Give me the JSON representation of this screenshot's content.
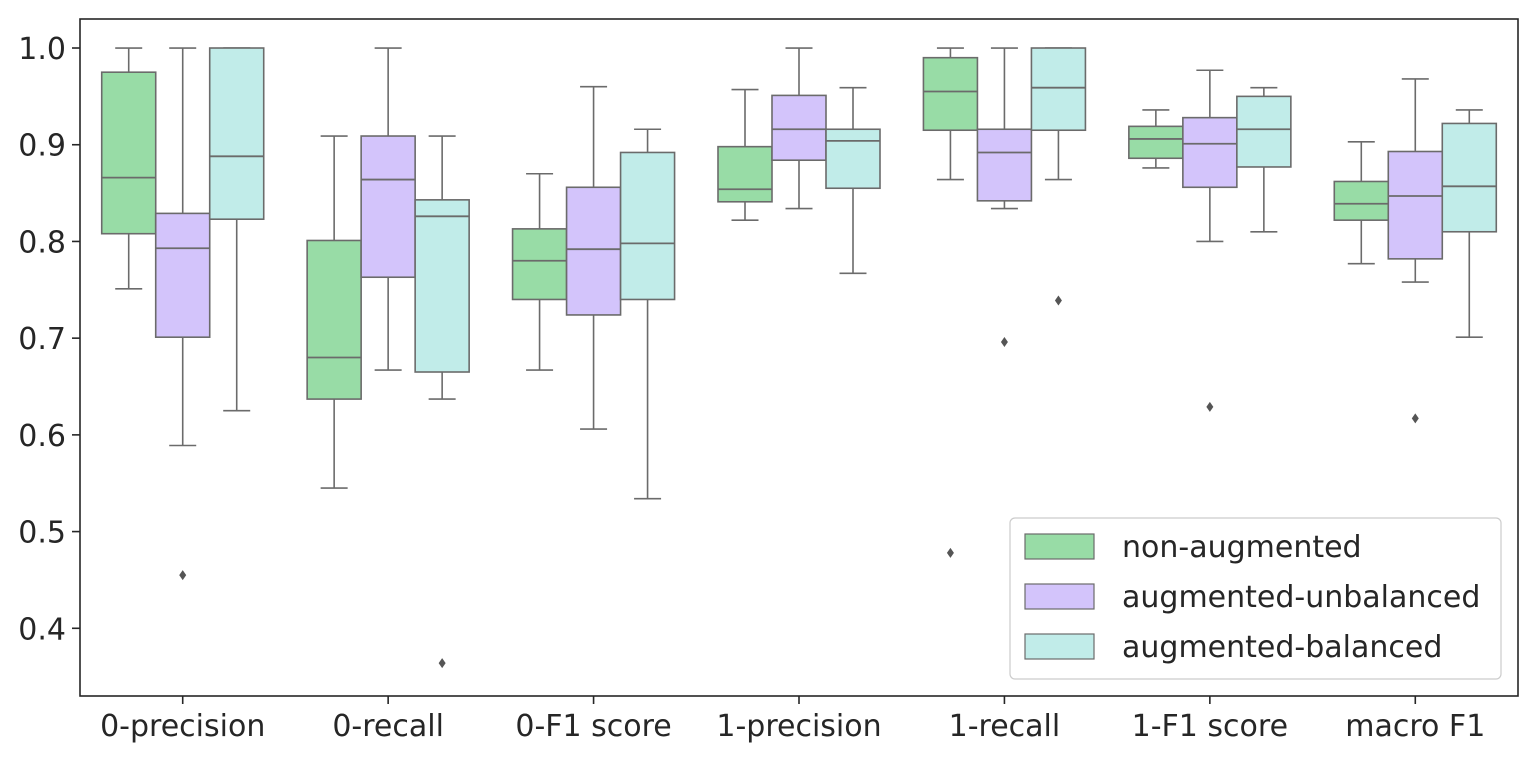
{
  "chart_data": {
    "type": "box",
    "title": "",
    "xlabel": "",
    "ylabel": "",
    "ylim": [
      0.33,
      1.03
    ],
    "yticks": [
      0.4,
      0.5,
      0.6,
      0.7,
      0.8,
      0.9,
      1.0
    ],
    "ytick_labels": [
      "0.4",
      "0.5",
      "0.6",
      "0.7",
      "0.8",
      "0.9",
      "1.0"
    ],
    "grid": false,
    "legend_position": "bottom-right",
    "categories": [
      "0-precision",
      "0-recall",
      "0-F1 score",
      "1-precision",
      "1-recall",
      "1-F1 score",
      "macro F1"
    ],
    "series": [
      {
        "name": "non-augmented",
        "color": "#98DCA6",
        "boxes": [
          {
            "whisker_low": 0.751,
            "q1": 0.808,
            "median": 0.866,
            "q3": 0.975,
            "whisker_high": 1.0,
            "outliers": []
          },
          {
            "whisker_low": 0.545,
            "q1": 0.637,
            "median": 0.68,
            "q3": 0.801,
            "whisker_high": 0.909,
            "outliers": []
          },
          {
            "whisker_low": 0.667,
            "q1": 0.74,
            "median": 0.78,
            "q3": 0.813,
            "whisker_high": 0.87,
            "outliers": []
          },
          {
            "whisker_low": 0.822,
            "q1": 0.841,
            "median": 0.854,
            "q3": 0.898,
            "whisker_high": 0.957,
            "outliers": []
          },
          {
            "whisker_low": 0.864,
            "q1": 0.915,
            "median": 0.955,
            "q3": 0.99,
            "whisker_high": 1.0,
            "outliers": [
              0.478
            ]
          },
          {
            "whisker_low": 0.876,
            "q1": 0.886,
            "median": 0.906,
            "q3": 0.919,
            "whisker_high": 0.936,
            "outliers": []
          },
          {
            "whisker_low": 0.777,
            "q1": 0.822,
            "median": 0.839,
            "q3": 0.862,
            "whisker_high": 0.903,
            "outliers": []
          }
        ]
      },
      {
        "name": "augmented-unbalanced",
        "color": "#D3C4FB",
        "boxes": [
          {
            "whisker_low": 0.589,
            "q1": 0.701,
            "median": 0.793,
            "q3": 0.829,
            "whisker_high": 1.0,
            "outliers": [
              0.455
            ]
          },
          {
            "whisker_low": 0.667,
            "q1": 0.763,
            "median": 0.864,
            "q3": 0.909,
            "whisker_high": 1.0,
            "outliers": []
          },
          {
            "whisker_low": 0.606,
            "q1": 0.724,
            "median": 0.792,
            "q3": 0.856,
            "whisker_high": 0.96,
            "outliers": []
          },
          {
            "whisker_low": 0.834,
            "q1": 0.884,
            "median": 0.916,
            "q3": 0.951,
            "whisker_high": 1.0,
            "outliers": []
          },
          {
            "whisker_low": 0.834,
            "q1": 0.842,
            "median": 0.892,
            "q3": 0.916,
            "whisker_high": 1.0,
            "outliers": [
              0.696
            ]
          },
          {
            "whisker_low": 0.8,
            "q1": 0.856,
            "median": 0.901,
            "q3": 0.928,
            "whisker_high": 0.977,
            "outliers": [
              0.629
            ]
          },
          {
            "whisker_low": 0.758,
            "q1": 0.782,
            "median": 0.847,
            "q3": 0.893,
            "whisker_high": 0.968,
            "outliers": [
              0.617
            ]
          }
        ]
      },
      {
        "name": "augmented-balanced",
        "color": "#C1ECE9",
        "boxes": [
          {
            "whisker_low": 0.625,
            "q1": 0.823,
            "median": 0.888,
            "q3": 1.0,
            "whisker_high": 1.0,
            "outliers": []
          },
          {
            "whisker_low": 0.637,
            "q1": 0.665,
            "median": 0.826,
            "q3": 0.843,
            "whisker_high": 0.909,
            "outliers": [
              0.364
            ]
          },
          {
            "whisker_low": 0.534,
            "q1": 0.74,
            "median": 0.798,
            "q3": 0.892,
            "whisker_high": 0.916,
            "outliers": []
          },
          {
            "whisker_low": 0.767,
            "q1": 0.855,
            "median": 0.904,
            "q3": 0.916,
            "whisker_high": 0.959,
            "outliers": []
          },
          {
            "whisker_low": 0.864,
            "q1": 0.915,
            "median": 0.959,
            "q3": 1.0,
            "whisker_high": 1.0,
            "outliers": [
              0.739
            ]
          },
          {
            "whisker_low": 0.81,
            "q1": 0.877,
            "median": 0.916,
            "q3": 0.95,
            "whisker_high": 0.959,
            "outliers": []
          },
          {
            "whisker_low": 0.701,
            "q1": 0.81,
            "median": 0.857,
            "q3": 0.922,
            "whisker_high": 0.936,
            "outliers": []
          }
        ]
      }
    ]
  }
}
